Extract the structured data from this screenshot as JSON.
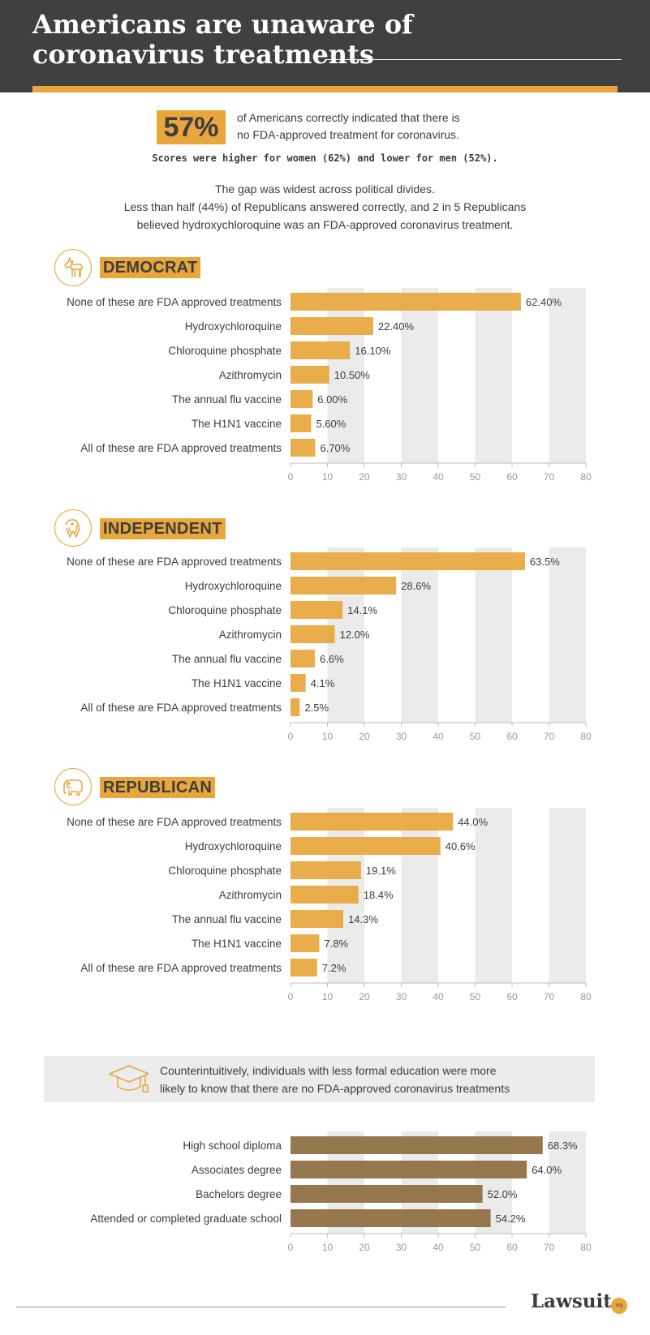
{
  "header": {
    "title_line1": "Americans are unaware of",
    "title_line2": "coronavirus treatments"
  },
  "intro": {
    "percent": "57%",
    "text_line1": "of Americans correctly indicated that there is",
    "text_line2": "no FDA-approved treatment for coronavirus.",
    "subtext": "Scores were higher for women (62%) and lower for men (52%).",
    "gap_line1": "The gap was widest across political divides.",
    "gap_line2": "Less than half (44%) of Republicans answered correctly, and 2 in 5 Republicans",
    "gap_line3": "believed hydroxychloroquine was an FDA-approved coronavirus treatment."
  },
  "sections": {
    "democrat": {
      "label": "DEMOCRAT",
      "icon": "donkey-icon"
    },
    "independent": {
      "label": "INDEPENDENT",
      "icon": "eagle-icon"
    },
    "republican": {
      "label": "REPUBLICAN",
      "icon": "elephant-icon"
    }
  },
  "education_note": {
    "icon": "graduation-cap-icon",
    "line1": "Counterintuitively, individuals with less formal education were more",
    "line2": "likely to know that there are no FDA-approved coronavirus treatments"
  },
  "footer": {
    "logo": "Lawsuit",
    "logo_suffix": "org"
  },
  "colors": {
    "accent": "#e8a63c",
    "education_bar": "#8c6d3f",
    "band": "#ebebeb",
    "header_bg": "#404040"
  },
  "chart_data": [
    {
      "type": "bar",
      "orientation": "horizontal",
      "categories": [
        "None of these are FDA approved treatments",
        "Hydroxychloroquine",
        "Chloroquine phosphate",
        "Azithromycin",
        "The annual flu vaccine",
        "The H1N1 vaccine",
        "All of these are FDA approved treatments"
      ],
      "values": [
        62.4,
        22.4,
        16.1,
        10.5,
        6.0,
        5.6,
        6.7
      ],
      "value_labels": [
        "62.40%",
        "22.40%",
        "16.10%",
        "10.50%",
        "6.00%",
        "5.60%",
        "6.70%"
      ],
      "xticks": [
        "0",
        "10",
        "20",
        "30",
        "40",
        "50",
        "60",
        "70",
        "80"
      ],
      "xlim": [
        0,
        80
      ],
      "bar_color": "#e8a63c",
      "grid": "alternating-bands"
    },
    {
      "type": "bar",
      "orientation": "horizontal",
      "categories": [
        "None of these are FDA approved treatments",
        "Hydroxychloroquine",
        "Chloroquine phosphate",
        "Azithromycin",
        "The annual flu vaccine",
        "The H1N1 vaccine",
        "All of these are FDA approved treatments"
      ],
      "values": [
        63.5,
        28.6,
        14.1,
        12.0,
        6.6,
        4.1,
        2.5
      ],
      "value_labels": [
        "63.5%",
        "28.6%",
        "14.1%",
        "12.0%",
        "6.6%",
        "4.1%",
        "2.5%"
      ],
      "xticks": [
        "0",
        "10",
        "20",
        "30",
        "40",
        "50",
        "60",
        "70",
        "80"
      ],
      "xlim": [
        0,
        80
      ],
      "bar_color": "#e8a63c",
      "grid": "alternating-bands"
    },
    {
      "type": "bar",
      "orientation": "horizontal",
      "categories": [
        "None of these are FDA approved treatments",
        "Hydroxychloroquine",
        "Chloroquine phosphate",
        "Azithromycin",
        "The annual flu vaccine",
        "The H1N1 vaccine",
        "All of these are FDA approved treatments"
      ],
      "values": [
        44.0,
        40.6,
        19.1,
        18.4,
        14.3,
        7.8,
        7.2
      ],
      "value_labels": [
        "44.0%",
        "40.6%",
        "19.1%",
        "18.4%",
        "14.3%",
        "7.8%",
        "7.2%"
      ],
      "xticks": [
        "0",
        "10",
        "20",
        "30",
        "40",
        "50",
        "60",
        "70",
        "80"
      ],
      "xlim": [
        0,
        80
      ],
      "bar_color": "#e8a63c",
      "grid": "alternating-bands"
    },
    {
      "type": "bar",
      "orientation": "horizontal",
      "categories": [
        "High school diploma",
        "Associates degree",
        "Bachelors degree",
        "Attended or completed graduate school"
      ],
      "values": [
        68.3,
        64.0,
        52.0,
        54.2
      ],
      "value_labels": [
        "68.3%",
        "64.0%",
        "52.0%",
        "54.2%"
      ],
      "xticks": [
        "0",
        "10",
        "20",
        "30",
        "40",
        "50",
        "60",
        "70",
        "80"
      ],
      "xlim": [
        0,
        80
      ],
      "bar_color": "#8c6d3f",
      "grid": "alternating-bands"
    }
  ]
}
